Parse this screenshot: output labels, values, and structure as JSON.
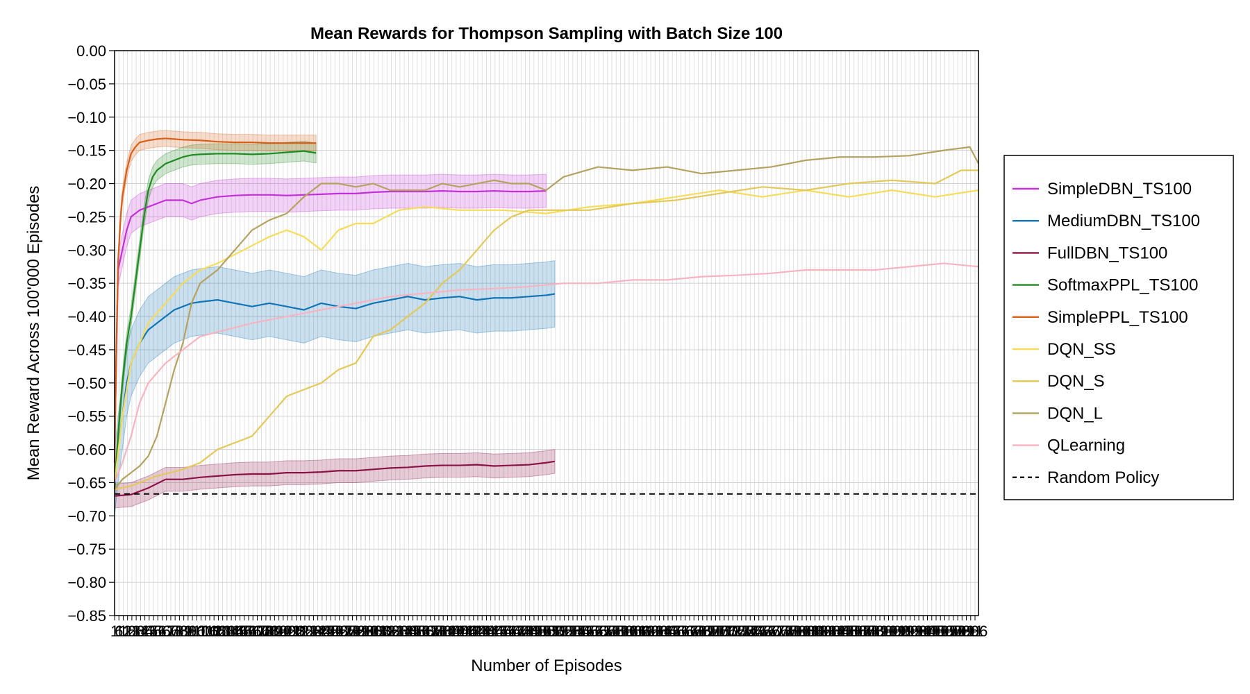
{
  "chart_data": {
    "type": "line",
    "title": "Mean Rewards for Thompson Sampling with Batch Size 100",
    "xlabel": "Number of Episodes",
    "ylabel": "Mean Reward Across 100'000 Episodes",
    "xlim": [
      1,
      1000
    ],
    "ylim": [
      -0.85,
      0.0
    ],
    "y_ticks": [
      0.0,
      -0.05,
      -0.1,
      -0.15,
      -0.2,
      -0.25,
      -0.3,
      -0.35,
      -0.4,
      -0.45,
      -0.5,
      -0.55,
      -0.6,
      -0.65,
      -0.7,
      -0.75,
      -0.8,
      -0.85
    ],
    "y_tick_labels": [
      "0.00",
      "−0.05",
      "−0.10",
      "−0.15",
      "−0.20",
      "−0.25",
      "−0.30",
      "−0.35",
      "−0.40",
      "−0.45",
      "−0.50",
      "−0.55",
      "−0.60",
      "−0.65",
      "−0.70",
      "−0.75",
      "−0.80",
      "−0.85"
    ],
    "x_tick_step": 5,
    "grid": true,
    "legend_position": "right",
    "reference_line": {
      "name": "Random Policy",
      "y": -0.667,
      "color": "#000000",
      "style": "dashed"
    },
    "series": [
      {
        "name": "SimpleDBN_TS100",
        "color": "#c430d8",
        "band": true,
        "band_width": 0.025,
        "x": [
          1,
          5,
          10,
          15,
          20,
          30,
          40,
          50,
          60,
          70,
          80,
          90,
          100,
          120,
          140,
          160,
          180,
          200,
          220,
          240,
          260,
          280,
          300,
          320,
          340,
          360,
          380,
          400,
          420,
          440,
          460,
          480,
          500
        ],
        "y": [
          -0.6,
          -0.33,
          -0.3,
          -0.27,
          -0.25,
          -0.24,
          -0.235,
          -0.23,
          -0.225,
          -0.225,
          -0.225,
          -0.23,
          -0.225,
          -0.22,
          -0.218,
          -0.217,
          -0.217,
          -0.218,
          -0.217,
          -0.216,
          -0.215,
          -0.215,
          -0.213,
          -0.212,
          -0.212,
          -0.212,
          -0.211,
          -0.212,
          -0.212,
          -0.211,
          -0.212,
          -0.212,
          -0.211
        ]
      },
      {
        "name": "MediumDBN_TS100",
        "color": "#0e74b6",
        "band": true,
        "band_width": 0.05,
        "x": [
          1,
          5,
          10,
          15,
          20,
          30,
          40,
          50,
          60,
          70,
          80,
          90,
          100,
          120,
          140,
          160,
          180,
          200,
          220,
          240,
          260,
          280,
          300,
          320,
          340,
          360,
          380,
          400,
          420,
          440,
          460,
          480,
          500,
          510
        ],
        "y": [
          -0.65,
          -0.6,
          -0.55,
          -0.5,
          -0.47,
          -0.44,
          -0.42,
          -0.41,
          -0.4,
          -0.39,
          -0.385,
          -0.38,
          -0.378,
          -0.375,
          -0.38,
          -0.385,
          -0.38,
          -0.385,
          -0.39,
          -0.38,
          -0.385,
          -0.388,
          -0.38,
          -0.375,
          -0.37,
          -0.375,
          -0.372,
          -0.37,
          -0.375,
          -0.372,
          -0.372,
          -0.37,
          -0.368,
          -0.366
        ]
      },
      {
        "name": "FullDBN_TS100",
        "color": "#8b1245",
        "band": true,
        "band_width": 0.018,
        "x": [
          1,
          20,
          40,
          60,
          80,
          100,
          120,
          140,
          160,
          180,
          200,
          220,
          240,
          260,
          280,
          300,
          320,
          340,
          360,
          380,
          400,
          420,
          440,
          460,
          480,
          500,
          510
        ],
        "y": [
          -0.67,
          -0.668,
          -0.658,
          -0.645,
          -0.645,
          -0.642,
          -0.64,
          -0.638,
          -0.637,
          -0.637,
          -0.635,
          -0.635,
          -0.634,
          -0.632,
          -0.632,
          -0.63,
          -0.628,
          -0.627,
          -0.625,
          -0.624,
          -0.624,
          -0.623,
          -0.625,
          -0.624,
          -0.623,
          -0.62,
          -0.618
        ]
      },
      {
        "name": "SoftmaxPPL_TS100",
        "color": "#1f8a1f",
        "band": true,
        "band_width": 0.015,
        "x": [
          1,
          5,
          10,
          15,
          20,
          25,
          30,
          35,
          40,
          45,
          50,
          55,
          60,
          70,
          80,
          90,
          100,
          120,
          140,
          160,
          180,
          200,
          220,
          234
        ],
        "y": [
          -0.66,
          -0.58,
          -0.5,
          -0.44,
          -0.4,
          -0.35,
          -0.3,
          -0.25,
          -0.21,
          -0.19,
          -0.18,
          -0.175,
          -0.17,
          -0.165,
          -0.16,
          -0.157,
          -0.156,
          -0.155,
          -0.155,
          -0.156,
          -0.155,
          -0.153,
          -0.151,
          -0.154
        ]
      },
      {
        "name": "SimplePPL_TS100",
        "color": "#d95f16",
        "band": true,
        "band_width": 0.012,
        "x": [
          1,
          3,
          5,
          8,
          10,
          15,
          20,
          25,
          30,
          40,
          50,
          60,
          70,
          80,
          100,
          120,
          140,
          160,
          180,
          200,
          220,
          234
        ],
        "y": [
          -0.62,
          -0.45,
          -0.32,
          -0.25,
          -0.22,
          -0.18,
          -0.155,
          -0.145,
          -0.138,
          -0.135,
          -0.133,
          -0.132,
          -0.133,
          -0.134,
          -0.135,
          -0.137,
          -0.138,
          -0.138,
          -0.139,
          -0.139,
          -0.139,
          -0.139
        ]
      },
      {
        "name": "DQN_SS",
        "color": "#f5dc5a",
        "band": false,
        "x": [
          1,
          10,
          20,
          40,
          60,
          80,
          100,
          120,
          150,
          180,
          200,
          220,
          240,
          260,
          280,
          300,
          330,
          360,
          400,
          450,
          500,
          550,
          600,
          650,
          700,
          750,
          800,
          850,
          900,
          950,
          1000
        ],
        "y": [
          -0.65,
          -0.55,
          -0.47,
          -0.41,
          -0.38,
          -0.35,
          -0.33,
          -0.32,
          -0.3,
          -0.28,
          -0.27,
          -0.28,
          -0.3,
          -0.27,
          -0.26,
          -0.26,
          -0.24,
          -0.235,
          -0.24,
          -0.24,
          -0.245,
          -0.235,
          -0.23,
          -0.22,
          -0.21,
          -0.22,
          -0.21,
          -0.22,
          -0.21,
          -0.22,
          -0.21
        ]
      },
      {
        "name": "DQN_S",
        "color": "#e3c85a",
        "band": false,
        "x": [
          1,
          20,
          50,
          80,
          100,
          120,
          140,
          160,
          180,
          200,
          220,
          240,
          260,
          280,
          300,
          320,
          340,
          360,
          380,
          400,
          420,
          440,
          460,
          480,
          500,
          550,
          600,
          650,
          700,
          750,
          800,
          850,
          900,
          950,
          980,
          1000
        ],
        "y": [
          -0.66,
          -0.655,
          -0.64,
          -0.63,
          -0.62,
          -0.6,
          -0.59,
          -0.58,
          -0.55,
          -0.52,
          -0.51,
          -0.5,
          -0.48,
          -0.47,
          -0.43,
          -0.42,
          -0.4,
          -0.38,
          -0.35,
          -0.33,
          -0.3,
          -0.27,
          -0.25,
          -0.24,
          -0.24,
          -0.24,
          -0.23,
          -0.225,
          -0.215,
          -0.205,
          -0.21,
          -0.2,
          -0.195,
          -0.2,
          -0.18,
          -0.18
        ]
      },
      {
        "name": "DQN_L",
        "color": "#b5a260",
        "band": false,
        "x": [
          1,
          10,
          20,
          30,
          40,
          50,
          60,
          70,
          80,
          90,
          100,
          120,
          140,
          160,
          180,
          200,
          220,
          240,
          260,
          280,
          300,
          320,
          340,
          360,
          380,
          400,
          420,
          440,
          460,
          480,
          500,
          520,
          560,
          600,
          640,
          680,
          720,
          760,
          800,
          840,
          880,
          920,
          960,
          990,
          1000
        ],
        "y": [
          -0.66,
          -0.645,
          -0.635,
          -0.625,
          -0.61,
          -0.58,
          -0.53,
          -0.48,
          -0.44,
          -0.38,
          -0.35,
          -0.33,
          -0.3,
          -0.27,
          -0.255,
          -0.245,
          -0.22,
          -0.2,
          -0.2,
          -0.205,
          -0.2,
          -0.21,
          -0.21,
          -0.21,
          -0.2,
          -0.205,
          -0.2,
          -0.195,
          -0.2,
          -0.2,
          -0.21,
          -0.19,
          -0.175,
          -0.18,
          -0.175,
          -0.185,
          -0.18,
          -0.175,
          -0.165,
          -0.16,
          -0.16,
          -0.158,
          -0.15,
          -0.145,
          -0.17
        ]
      },
      {
        "name": "QLearning",
        "color": "#f7b4c0",
        "band": false,
        "x": [
          1,
          10,
          20,
          30,
          40,
          60,
          80,
          100,
          130,
          160,
          200,
          240,
          280,
          320,
          360,
          400,
          440,
          480,
          520,
          560,
          600,
          640,
          680,
          720,
          760,
          800,
          840,
          880,
          920,
          960,
          1000
        ],
        "y": [
          -0.65,
          -0.62,
          -0.58,
          -0.53,
          -0.5,
          -0.47,
          -0.45,
          -0.43,
          -0.42,
          -0.41,
          -0.4,
          -0.39,
          -0.38,
          -0.37,
          -0.365,
          -0.36,
          -0.358,
          -0.355,
          -0.35,
          -0.35,
          -0.345,
          -0.345,
          -0.34,
          -0.338,
          -0.335,
          -0.33,
          -0.33,
          -0.33,
          -0.325,
          -0.32,
          -0.325
        ]
      }
    ]
  }
}
